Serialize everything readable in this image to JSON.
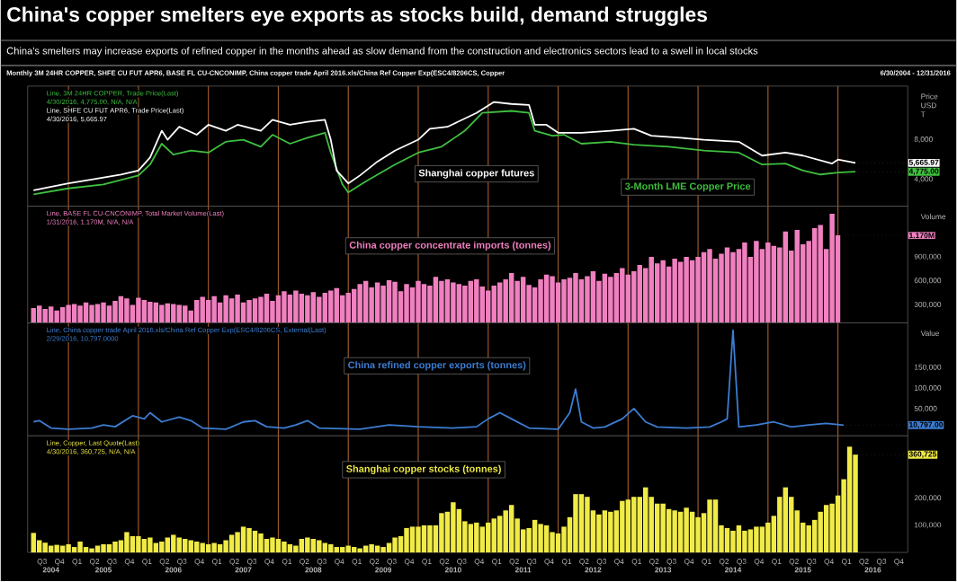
{
  "chart_data": [
    {
      "type": "other",
      "title": "China's copper smelters eye exports as stocks build, demand struggles",
      "subtitle": "China's smelters may increase exports of refined copper in the months ahead as slow demand from the construction and electronics sectors lead to a swell in local stocks",
      "annotations": [
        "Monthly 3M 24HR COPPER, SHFE CU FUT APR6, BASE FL CU-CNCONIMP, China copper trade April 2016.xls/China Ref Copper Exp(ESC4/8206CS, Copper",
        "6/30/2004 - 12/31/2016"
      ]
    },
    {
      "type": "line",
      "xlim": [
        "2004-06-01",
        "2016-12-31"
      ],
      "ylim": [
        1300,
        13400
      ],
      "yticks": [
        {
          "value": 4000,
          "label": "4,000"
        },
        {
          "value": 8000,
          "label": "8,000"
        }
      ],
      "tick_labels": "y",
      "ylabel": "Price USD T",
      "series": [
        {
          "name": "3-Month LME Copper Price",
          "color": "#3fbf3f",
          "x": [
            "2004-07",
            "2005-01",
            "2005-07",
            "2006-01",
            "2006-03",
            "2006-05",
            "2006-07",
            "2006-10",
            "2007-01",
            "2007-04",
            "2007-07",
            "2007-10",
            "2007-12",
            "2008-03",
            "2008-06",
            "2008-09",
            "2008-10",
            "2008-12",
            "2009-01",
            "2009-04",
            "2009-09",
            "2010-01",
            "2010-05",
            "2010-09",
            "2010-12",
            "2011-05",
            "2011-08",
            "2011-09",
            "2011-12",
            "2012-02",
            "2012-05",
            "2012-10",
            "2013-02",
            "2013-08",
            "2014-02",
            "2014-08",
            "2014-12",
            "2015-04",
            "2015-07",
            "2015-10",
            "2016-01",
            "2016-04"
          ],
          "values": [
            2500,
            3100,
            3500,
            4400,
            5500,
            7600,
            6500,
            6900,
            6700,
            7800,
            8000,
            7300,
            8500,
            7600,
            8200,
            8700,
            6700,
            3500,
            2700,
            3800,
            5500,
            6700,
            7300,
            8900,
            10700,
            10900,
            10700,
            8900,
            8400,
            8500,
            7600,
            7800,
            7500,
            7300,
            6900,
            6700,
            5500,
            5600,
            4900,
            4500,
            4700,
            4775
          ]
        },
        {
          "name": "Shanghai copper futures",
          "color": "#ffffff",
          "x": [
            "2004-07",
            "2005-01",
            "2005-05",
            "2005-10",
            "2006-01",
            "2006-03",
            "2006-05",
            "2006-06",
            "2006-08",
            "2006-11",
            "2007-01",
            "2007-04",
            "2007-06",
            "2007-10",
            "2007-12",
            "2008-03",
            "2008-06",
            "2008-09",
            "2008-10",
            "2008-11",
            "2009-01",
            "2009-03",
            "2009-06",
            "2009-09",
            "2010-01",
            "2010-03",
            "2010-06",
            "2010-11",
            "2011-02",
            "2011-05",
            "2011-08",
            "2011-09",
            "2011-11",
            "2012-01",
            "2012-05",
            "2012-10",
            "2013-02",
            "2013-05",
            "2013-10",
            "2014-02",
            "2014-08",
            "2014-12",
            "2015-04",
            "2015-07",
            "2015-12",
            "2016-01",
            "2016-04"
          ],
          "values": [
            2900,
            3600,
            4000,
            4500,
            4900,
            6200,
            8900,
            8000,
            9300,
            8500,
            9500,
            8900,
            9500,
            8900,
            10000,
            9500,
            9800,
            10000,
            8000,
            4900,
            3600,
            4400,
            5800,
            6900,
            8000,
            9100,
            9300,
            10700,
            11800,
            11600,
            11500,
            9500,
            9500,
            8700,
            8700,
            8900,
            9100,
            8400,
            8200,
            8000,
            7800,
            6400,
            6700,
            6400,
            5600,
            6000,
            5665.97
          ]
        }
      ],
      "ref_lines": [
        {
          "axis": "x",
          "value": "2005-01-01",
          "color": "#9a5a2a"
        },
        {
          "axis": "x",
          "value": "2006-01-01",
          "color": "#9a5a2a"
        },
        {
          "axis": "x",
          "value": "2007-01-01",
          "color": "#9a5a2a"
        },
        {
          "axis": "x",
          "value": "2008-01-01",
          "color": "#9a5a2a"
        },
        {
          "axis": "x",
          "value": "2009-01-01",
          "color": "#9a5a2a"
        },
        {
          "axis": "x",
          "value": "2010-01-01",
          "color": "#9a5a2a"
        },
        {
          "axis": "x",
          "value": "2011-01-01",
          "color": "#9a5a2a"
        },
        {
          "axis": "x",
          "value": "2012-01-01",
          "color": "#9a5a2a"
        },
        {
          "axis": "x",
          "value": "2013-01-01",
          "color": "#9a5a2a"
        },
        {
          "axis": "x",
          "value": "2014-01-01",
          "color": "#9a5a2a"
        },
        {
          "axis": "x",
          "value": "2015-01-01",
          "color": "#9a5a2a"
        },
        {
          "axis": "x",
          "value": "2016-01-01",
          "color": "#9a5a2a"
        }
      ],
      "annotations": [
        "Line, 3M 24HR COPPER, Trade Price(Last)",
        "4/30/2016, 4,775.00, N/A, N/A",
        "Line, SHFE CU FUT APR6, Trade Price(Last)",
        "4/30/2016, 5,665.97",
        {
          "text": "4,775.00",
          "x": "2016-04",
          "y": 4775
        },
        {
          "text": "5,665.97",
          "x": "2016-04",
          "y": 5665.97
        }
      ]
    },
    {
      "type": "bar",
      "xlim": [
        "2004-06-01",
        "2016-12-31"
      ],
      "ylim": [
        75000,
        1535000
      ],
      "yticks": [
        {
          "value": 300000,
          "label": "300,000"
        },
        {
          "value": 600000,
          "label": "600,000"
        },
        {
          "value": 900000,
          "label": "900,000"
        }
      ],
      "tick_labels": "y",
      "ylabel": "Volume",
      "x": [
        "2004-07",
        "2004-08",
        "2004-09",
        "2004-10",
        "2004-11",
        "2004-12",
        "2005-01",
        "2005-02",
        "2005-03",
        "2005-04",
        "2005-05",
        "2005-06",
        "2005-07",
        "2005-08",
        "2005-09",
        "2005-10",
        "2005-11",
        "2005-12",
        "2006-01",
        "2006-02",
        "2006-03",
        "2006-04",
        "2006-05",
        "2006-06",
        "2006-07",
        "2006-08",
        "2006-09",
        "2006-10",
        "2006-11",
        "2006-12",
        "2007-01",
        "2007-02",
        "2007-03",
        "2007-04",
        "2007-05",
        "2007-06",
        "2007-07",
        "2007-08",
        "2007-09",
        "2007-10",
        "2007-11",
        "2007-12",
        "2008-01",
        "2008-02",
        "2008-03",
        "2008-04",
        "2008-05",
        "2008-06",
        "2008-07",
        "2008-08",
        "2008-09",
        "2008-10",
        "2008-11",
        "2008-12",
        "2009-01",
        "2009-02",
        "2009-03",
        "2009-04",
        "2009-05",
        "2009-06",
        "2009-07",
        "2009-08",
        "2009-09",
        "2009-10",
        "2009-11",
        "2009-12",
        "2010-01",
        "2010-02",
        "2010-03",
        "2010-04",
        "2010-05",
        "2010-06",
        "2010-07",
        "2010-08",
        "2010-09",
        "2010-10",
        "2010-11",
        "2010-12",
        "2011-01",
        "2011-02",
        "2011-03",
        "2011-04",
        "2011-05",
        "2011-06",
        "2011-07",
        "2011-08",
        "2011-09",
        "2011-10",
        "2011-11",
        "2011-12",
        "2012-01",
        "2012-02",
        "2012-03",
        "2012-04",
        "2012-05",
        "2012-06",
        "2012-07",
        "2012-08",
        "2012-09",
        "2012-10",
        "2012-11",
        "2012-12",
        "2013-01",
        "2013-02",
        "2013-03",
        "2013-04",
        "2013-05",
        "2013-06",
        "2013-07",
        "2013-08",
        "2013-09",
        "2013-10",
        "2013-11",
        "2013-12",
        "2014-01",
        "2014-02",
        "2014-03",
        "2014-04",
        "2014-05",
        "2014-06",
        "2014-07",
        "2014-08",
        "2014-09",
        "2014-10",
        "2014-11",
        "2014-12",
        "2015-01",
        "2015-02",
        "2015-03",
        "2015-04",
        "2015-05",
        "2015-06",
        "2015-07",
        "2015-08",
        "2015-09",
        "2015-10",
        "2015-11",
        "2015-12",
        "2016-01"
      ],
      "series": [
        {
          "name": "China copper concentrate imports (tonnes)",
          "color": "#f080c0",
          "values": [
            260000,
            290000,
            250000,
            280000,
            230000,
            270000,
            300000,
            310000,
            290000,
            330000,
            300000,
            310000,
            330000,
            290000,
            350000,
            410000,
            380000,
            300000,
            390000,
            360000,
            340000,
            330000,
            300000,
            320000,
            310000,
            300000,
            290000,
            230000,
            360000,
            400000,
            360000,
            410000,
            330000,
            420000,
            380000,
            430000,
            330000,
            360000,
            380000,
            400000,
            440000,
            350000,
            420000,
            470000,
            430000,
            480000,
            440000,
            420000,
            460000,
            400000,
            450000,
            480000,
            510000,
            420000,
            450000,
            500000,
            560000,
            600000,
            520000,
            580000,
            540000,
            610000,
            590000,
            470000,
            560000,
            520000,
            600000,
            560000,
            540000,
            650000,
            600000,
            620000,
            580000,
            560000,
            540000,
            600000,
            620000,
            530000,
            480000,
            540000,
            580000,
            620000,
            700000,
            600000,
            650000,
            550000,
            520000,
            620000,
            680000,
            660000,
            580000,
            620000,
            640000,
            700000,
            620000,
            660000,
            720000,
            600000,
            690000,
            650000,
            700000,
            760000,
            680000,
            720000,
            800000,
            760000,
            900000,
            820000,
            860000,
            780000,
            880000,
            840000,
            900000,
            860000,
            900000,
            960000,
            1000000,
            880000,
            940000,
            1020000,
            960000,
            1000000,
            1080000,
            900000,
            1100000,
            1000000,
            1080000,
            1040000,
            1020000,
            1220000,
            980000,
            1240000,
            1060000,
            1100000,
            1260000,
            1300000,
            1000000,
            1440000,
            1170000
          ]
        }
      ],
      "ref_lines": [
        {
          "axis": "x",
          "value": "2005-01-01",
          "color": "#9a5a2a"
        },
        {
          "axis": "x",
          "value": "2006-01-01",
          "color": "#9a5a2a"
        },
        {
          "axis": "x",
          "value": "2007-01-01",
          "color": "#9a5a2a"
        },
        {
          "axis": "x",
          "value": "2008-01-01",
          "color": "#9a5a2a"
        },
        {
          "axis": "x",
          "value": "2009-01-01",
          "color": "#9a5a2a"
        },
        {
          "axis": "x",
          "value": "2010-01-01",
          "color": "#9a5a2a"
        },
        {
          "axis": "x",
          "value": "2011-01-01",
          "color": "#9a5a2a"
        },
        {
          "axis": "x",
          "value": "2012-01-01",
          "color": "#9a5a2a"
        },
        {
          "axis": "x",
          "value": "2013-01-01",
          "color": "#9a5a2a"
        },
        {
          "axis": "x",
          "value": "2014-01-01",
          "color": "#9a5a2a"
        },
        {
          "axis": "x",
          "value": "2015-01-01",
          "color": "#9a5a2a"
        },
        {
          "axis": "x",
          "value": "2016-01-01",
          "color": "#9a5a2a"
        }
      ],
      "annotations": [
        "Line, BASE FL CU-CNCONIMP, Total Market Volume(Last)",
        "1/31/2016, 1.170M, N/A, N/A",
        {
          "text": "1.170M",
          "x": "2016-01",
          "y": 1170000
        }
      ]
    },
    {
      "type": "line",
      "xlim": [
        "2004-06-01",
        "2016-12-31"
      ],
      "ylim": [
        -15000,
        258000
      ],
      "yticks": [
        {
          "value": 50000,
          "label": "50,000"
        },
        {
          "value": 100000,
          "label": "100,000"
        },
        {
          "value": 150000,
          "label": "150,000"
        }
      ],
      "tick_labels": "y",
      "ylabel": "Value",
      "series": [
        {
          "name": "China refined copper exports (tonnes)",
          "color": "#3c7dd2",
          "x": [
            "2004-07",
            "2004-08",
            "2004-10",
            "2005-01",
            "2005-05",
            "2005-07",
            "2005-09",
            "2005-12",
            "2006-02",
            "2006-03",
            "2006-05",
            "2006-08",
            "2006-10",
            "2006-12",
            "2007-04",
            "2007-07",
            "2007-09",
            "2007-11",
            "2008-02",
            "2008-04",
            "2008-06",
            "2008-08",
            "2009-03",
            "2009-08",
            "2010-01",
            "2010-07",
            "2010-11",
            "2011-01",
            "2011-03",
            "2011-05",
            "2011-08",
            "2012-01",
            "2012-03",
            "2012-04",
            "2012-05",
            "2012-07",
            "2012-09",
            "2012-12",
            "2013-02",
            "2013-04",
            "2013-06",
            "2013-11",
            "2014-03",
            "2014-05",
            "2014-06",
            "2014-07",
            "2014-08",
            "2014-11",
            "2015-02",
            "2015-05",
            "2015-08",
            "2015-11",
            "2016-02"
          ],
          "values": [
            18700,
            21700,
            3900,
            1000,
            3900,
            11300,
            7000,
            33500,
            26000,
            40900,
            18700,
            30400,
            21700,
            3900,
            1000,
            18700,
            21700,
            7000,
            3900,
            11300,
            21700,
            3900,
            1000,
            11300,
            7000,
            3900,
            7000,
            26000,
            40900,
            26000,
            3900,
            1000,
            40900,
            98000,
            18700,
            3900,
            6500,
            26000,
            51000,
            18700,
            6500,
            3900,
            6500,
            18700,
            26000,
            240000,
            6500,
            11300,
            18700,
            6500,
            11300,
            15000,
            10797
          ]
        }
      ],
      "ref_lines": [
        {
          "axis": "x",
          "value": "2005-01-01",
          "color": "#9a5a2a"
        },
        {
          "axis": "x",
          "value": "2006-01-01",
          "color": "#9a5a2a"
        },
        {
          "axis": "x",
          "value": "2007-01-01",
          "color": "#9a5a2a"
        },
        {
          "axis": "x",
          "value": "2008-01-01",
          "color": "#9a5a2a"
        },
        {
          "axis": "x",
          "value": "2009-01-01",
          "color": "#9a5a2a"
        },
        {
          "axis": "x",
          "value": "2010-01-01",
          "color": "#9a5a2a"
        },
        {
          "axis": "x",
          "value": "2011-01-01",
          "color": "#9a5a2a"
        },
        {
          "axis": "x",
          "value": "2012-01-01",
          "color": "#9a5a2a"
        },
        {
          "axis": "x",
          "value": "2013-01-01",
          "color": "#9a5a2a"
        },
        {
          "axis": "x",
          "value": "2014-01-01",
          "color": "#9a5a2a"
        },
        {
          "axis": "x",
          "value": "2015-01-01",
          "color": "#9a5a2a"
        },
        {
          "axis": "x",
          "value": "2016-01-01",
          "color": "#9a5a2a"
        }
      ],
      "annotations": [
        "Line, China copper trade April 2016.xls/China Ref Copper Exp(ESC4/8206CS, External(Last)",
        "2/29/2016, 10,797.0000",
        {
          "text": "10,797.00",
          "x": "2016-02",
          "y": 10797
        }
      ]
    },
    {
      "type": "bar",
      "xlim": [
        "2004-06-01",
        "2016-12-31"
      ],
      "ylim": [
        0,
        430000
      ],
      "yticks": [
        {
          "value": 100000,
          "label": "100,000"
        },
        {
          "value": 200000,
          "label": "200,000"
        }
      ],
      "xticks": [
        {
          "value": "2004-08-15",
          "label": "Q3"
        },
        {
          "value": "2004-11-15",
          "label": "Q4"
        },
        {
          "value": "2005-02-15",
          "label": "Q1"
        },
        {
          "value": "2005-05-15",
          "label": "Q2"
        },
        {
          "value": "2005-08-15",
          "label": "Q3"
        },
        {
          "value": "2005-11-15",
          "label": "Q4"
        },
        {
          "value": "2006-02-15",
          "label": "Q1"
        },
        {
          "value": "2006-05-15",
          "label": "Q2"
        },
        {
          "value": "2006-08-15",
          "label": "Q3"
        },
        {
          "value": "2006-11-15",
          "label": "Q4"
        },
        {
          "value": "2007-02-15",
          "label": "Q1"
        },
        {
          "value": "2007-05-15",
          "label": "Q2"
        },
        {
          "value": "2007-08-15",
          "label": "Q3"
        },
        {
          "value": "2007-11-15",
          "label": "Q4"
        },
        {
          "value": "2008-02-15",
          "label": "Q1"
        },
        {
          "value": "2008-05-15",
          "label": "Q2"
        },
        {
          "value": "2008-08-15",
          "label": "Q3"
        },
        {
          "value": "2008-11-15",
          "label": "Q4"
        },
        {
          "value": "2009-02-15",
          "label": "Q1"
        },
        {
          "value": "2009-05-15",
          "label": "Q2"
        },
        {
          "value": "2009-08-15",
          "label": "Q3"
        },
        {
          "value": "2009-11-15",
          "label": "Q4"
        },
        {
          "value": "2010-02-15",
          "label": "Q1"
        },
        {
          "value": "2010-05-15",
          "label": "Q2"
        },
        {
          "value": "2010-08-15",
          "label": "Q3"
        },
        {
          "value": "2010-11-15",
          "label": "Q4"
        },
        {
          "value": "2011-02-15",
          "label": "Q1"
        },
        {
          "value": "2011-05-15",
          "label": "Q2"
        },
        {
          "value": "2011-08-15",
          "label": "Q3"
        },
        {
          "value": "2011-11-15",
          "label": "Q4"
        },
        {
          "value": "2012-02-15",
          "label": "Q1"
        },
        {
          "value": "2012-05-15",
          "label": "Q2"
        },
        {
          "value": "2012-08-15",
          "label": "Q3"
        },
        {
          "value": "2012-11-15",
          "label": "Q4"
        },
        {
          "value": "2013-02-15",
          "label": "Q1"
        },
        {
          "value": "2013-05-15",
          "label": "Q2"
        },
        {
          "value": "2013-08-15",
          "label": "Q3"
        },
        {
          "value": "2013-11-15",
          "label": "Q4"
        },
        {
          "value": "2014-02-15",
          "label": "Q1"
        },
        {
          "value": "2014-05-15",
          "label": "Q2"
        },
        {
          "value": "2014-08-15",
          "label": "Q3"
        },
        {
          "value": "2014-11-15",
          "label": "Q4"
        },
        {
          "value": "2015-02-15",
          "label": "Q1"
        },
        {
          "value": "2015-05-15",
          "label": "Q2"
        },
        {
          "value": "2015-08-15",
          "label": "Q3"
        },
        {
          "value": "2015-11-15",
          "label": "Q4"
        },
        {
          "value": "2016-02-15",
          "label": "Q1"
        },
        {
          "value": "2016-05-15",
          "label": "Q2"
        },
        {
          "value": "2016-08-15",
          "label": "Q3"
        },
        {
          "value": "2016-11-15",
          "label": "Q4"
        }
      ],
      "x": [
        "2004-07",
        "2004-08",
        "2004-09",
        "2004-10",
        "2004-11",
        "2004-12",
        "2005-01",
        "2005-02",
        "2005-03",
        "2005-04",
        "2005-05",
        "2005-06",
        "2005-07",
        "2005-08",
        "2005-09",
        "2005-10",
        "2005-11",
        "2005-12",
        "2006-01",
        "2006-02",
        "2006-03",
        "2006-04",
        "2006-05",
        "2006-06",
        "2006-07",
        "2006-08",
        "2006-09",
        "2006-10",
        "2006-11",
        "2006-12",
        "2007-01",
        "2007-02",
        "2007-03",
        "2007-04",
        "2007-05",
        "2007-06",
        "2007-07",
        "2007-08",
        "2007-09",
        "2007-10",
        "2007-11",
        "2007-12",
        "2008-01",
        "2008-02",
        "2008-03",
        "2008-04",
        "2008-05",
        "2008-06",
        "2008-07",
        "2008-08",
        "2008-09",
        "2008-10",
        "2008-11",
        "2008-12",
        "2009-01",
        "2009-02",
        "2009-03",
        "2009-04",
        "2009-05",
        "2009-06",
        "2009-07",
        "2009-08",
        "2009-09",
        "2009-10",
        "2009-11",
        "2009-12",
        "2010-01",
        "2010-02",
        "2010-03",
        "2010-04",
        "2010-05",
        "2010-06",
        "2010-07",
        "2010-08",
        "2010-09",
        "2010-10",
        "2010-11",
        "2010-12",
        "2011-01",
        "2011-02",
        "2011-03",
        "2011-04",
        "2011-05",
        "2011-06",
        "2011-07",
        "2011-08",
        "2011-09",
        "2011-10",
        "2011-11",
        "2011-12",
        "2012-01",
        "2012-02",
        "2012-03",
        "2012-04",
        "2012-05",
        "2012-06",
        "2012-07",
        "2012-08",
        "2012-09",
        "2012-10",
        "2012-11",
        "2012-12",
        "2013-01",
        "2013-02",
        "2013-03",
        "2013-04",
        "2013-05",
        "2013-06",
        "2013-07",
        "2013-08",
        "2013-09",
        "2013-10",
        "2013-11",
        "2013-12",
        "2014-01",
        "2014-02",
        "2014-03",
        "2014-04",
        "2014-05",
        "2014-06",
        "2014-07",
        "2014-08",
        "2014-09",
        "2014-10",
        "2014-11",
        "2014-12",
        "2015-01",
        "2015-02",
        "2015-03",
        "2015-04",
        "2015-05",
        "2015-06",
        "2015-07",
        "2015-08",
        "2015-09",
        "2015-10",
        "2015-11",
        "2015-12",
        "2016-01",
        "2016-02",
        "2016-03",
        "2016-04"
      ],
      "series": [
        {
          "name": "Shanghai copper stocks (tonnes)",
          "color": "#f0eb46",
          "values": [
            72000,
            45000,
            36000,
            25000,
            28000,
            25000,
            30000,
            20000,
            40000,
            20000,
            15000,
            25000,
            30000,
            30000,
            40000,
            45000,
            75000,
            60000,
            60000,
            50000,
            55000,
            35000,
            40000,
            55000,
            65000,
            55000,
            50000,
            45000,
            40000,
            35000,
            30000,
            35000,
            30000,
            45000,
            65000,
            75000,
            95000,
            90000,
            80000,
            70000,
            50000,
            55000,
            50000,
            40000,
            30000,
            25000,
            50000,
            55000,
            50000,
            45000,
            35000,
            30000,
            20000,
            20000,
            25000,
            20000,
            15000,
            25000,
            30000,
            25000,
            20000,
            35000,
            55000,
            60000,
            90000,
            95000,
            95000,
            100000,
            100000,
            100000,
            145000,
            150000,
            185000,
            160000,
            115000,
            105000,
            110000,
            95000,
            110000,
            125000,
            135000,
            155000,
            175000,
            125000,
            85000,
            90000,
            120000,
            105000,
            100000,
            75000,
            70000,
            95000,
            130000,
            215000,
            215000,
            205000,
            155000,
            140000,
            155000,
            150000,
            155000,
            190000,
            195000,
            205000,
            205000,
            240000,
            205000,
            180000,
            180000,
            160000,
            155000,
            150000,
            165000,
            150000,
            130000,
            145000,
            195000,
            195000,
            100000,
            90000,
            80000,
            100000,
            80000,
            85000,
            95000,
            95000,
            110000,
            135000,
            205000,
            240000,
            205000,
            155000,
            110000,
            100000,
            120000,
            150000,
            175000,
            180000,
            210000,
            270000,
            390000,
            360725
          ]
        }
      ],
      "ref_lines": [
        {
          "axis": "x",
          "value": "2005-01-01",
          "color": "#9a5a2a"
        },
        {
          "axis": "x",
          "value": "2006-01-01",
          "color": "#9a5a2a"
        },
        {
          "axis": "x",
          "value": "2007-01-01",
          "color": "#9a5a2a"
        },
        {
          "axis": "x",
          "value": "2008-01-01",
          "color": "#9a5a2a"
        },
        {
          "axis": "x",
          "value": "2009-01-01",
          "color": "#9a5a2a"
        },
        {
          "axis": "x",
          "value": "2010-01-01",
          "color": "#9a5a2a"
        },
        {
          "axis": "x",
          "value": "2011-01-01",
          "color": "#9a5a2a"
        },
        {
          "axis": "x",
          "value": "2012-01-01",
          "color": "#9a5a2a"
        },
        {
          "axis": "x",
          "value": "2013-01-01",
          "color": "#9a5a2a"
        },
        {
          "axis": "x",
          "value": "2014-01-01",
          "color": "#9a5a2a"
        },
        {
          "axis": "x",
          "value": "2015-01-01",
          "color": "#9a5a2a"
        },
        {
          "axis": "x",
          "value": "2016-01-01",
          "color": "#9a5a2a"
        }
      ],
      "annotations": [
        "Line, Copper, Last Quote(Last)",
        "4/30/2016, 360,725, N/A, N/A",
        {
          "text": "360,725",
          "x": "2016-04",
          "y": 360725
        },
        "2004",
        "2005",
        "2006",
        "2007",
        "2008",
        "2009",
        "2010",
        "2011",
        "2012",
        "2013",
        "2014",
        "2015",
        "2016"
      ]
    }
  ]
}
